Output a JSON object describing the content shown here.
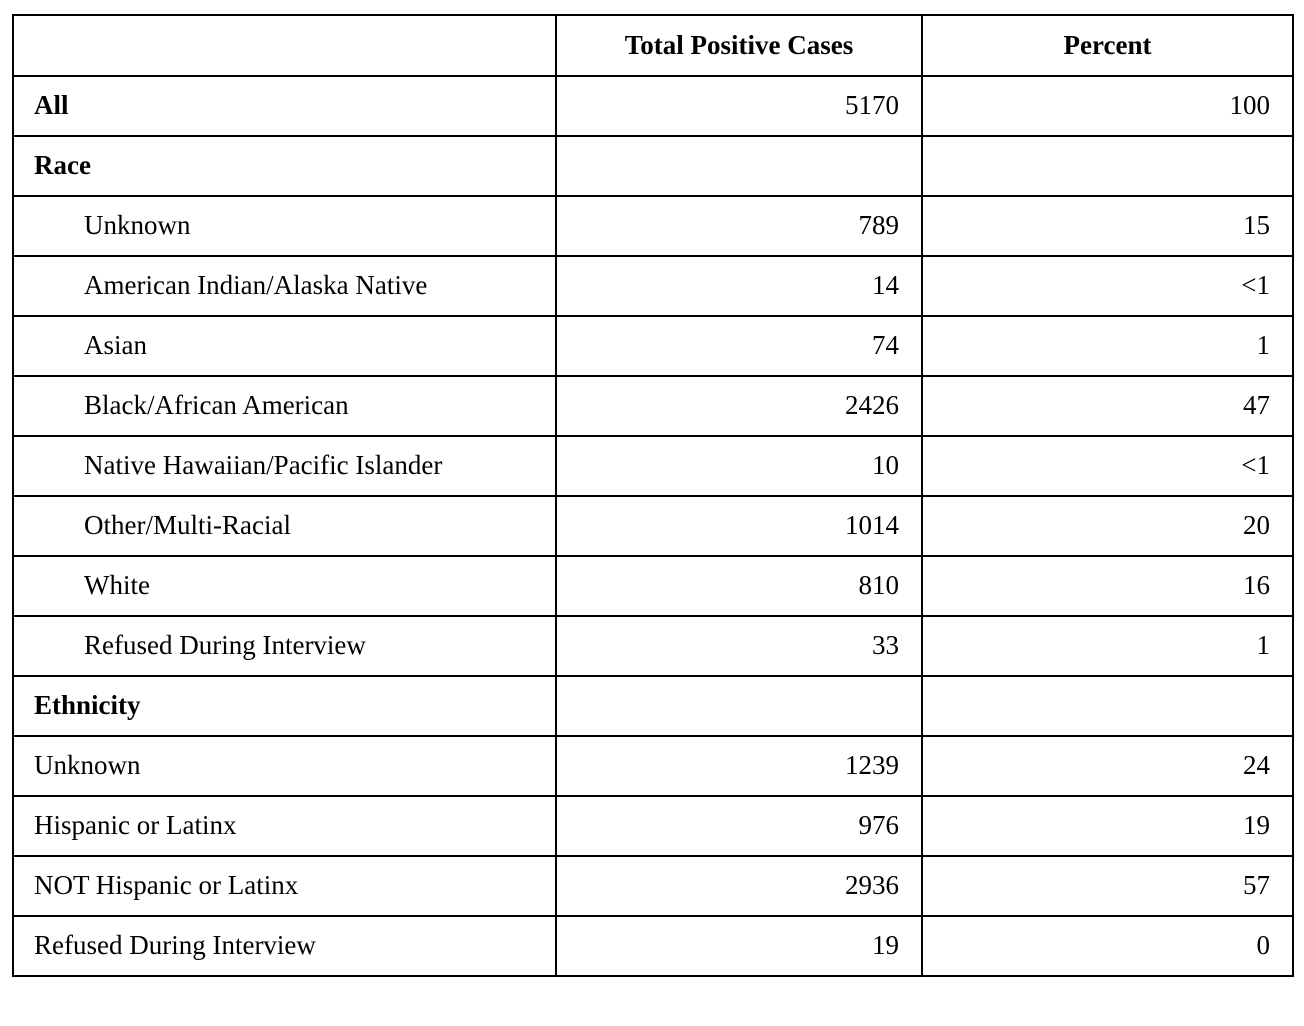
{
  "table": {
    "columns": [
      "",
      "Total Positive Cases",
      "Percent"
    ],
    "rows": [
      {
        "label": "All",
        "style": "section",
        "cases": "5170",
        "percent": "100"
      },
      {
        "label": "Race",
        "style": "section",
        "cases": "",
        "percent": ""
      },
      {
        "label": "Unknown",
        "style": "indent",
        "cases": "789",
        "percent": "15"
      },
      {
        "label": "American Indian/Alaska Native",
        "style": "indent",
        "cases": "14",
        "percent": "<1"
      },
      {
        "label": "Asian",
        "style": "indent",
        "cases": "74",
        "percent": "1"
      },
      {
        "label": "Black/African American",
        "style": "indent",
        "cases": "2426",
        "percent": "47"
      },
      {
        "label": "Native Hawaiian/Pacific Islander",
        "style": "indent",
        "cases": "10",
        "percent": "<1"
      },
      {
        "label": "Other/Multi-Racial",
        "style": "indent",
        "cases": "1014",
        "percent": "20"
      },
      {
        "label": "White",
        "style": "indent",
        "cases": "810",
        "percent": "16"
      },
      {
        "label": "Refused During Interview",
        "style": "indent",
        "cases": "33",
        "percent": "1"
      },
      {
        "label": "Ethnicity",
        "style": "section",
        "cases": "",
        "percent": ""
      },
      {
        "label": "Unknown",
        "style": "plain",
        "cases": "1239",
        "percent": "24"
      },
      {
        "label": "Hispanic or Latinx",
        "style": "plain",
        "cases": "976",
        "percent": "19"
      },
      {
        "label": "NOT Hispanic or Latinx",
        "style": "plain",
        "cases": "2936",
        "percent": "57"
      },
      {
        "label": "Refused During Interview",
        "style": "plain",
        "cases": "19",
        "percent": "0"
      }
    ]
  },
  "colors": {
    "border": "#000000",
    "background": "#ffffff",
    "text": "#000000"
  }
}
